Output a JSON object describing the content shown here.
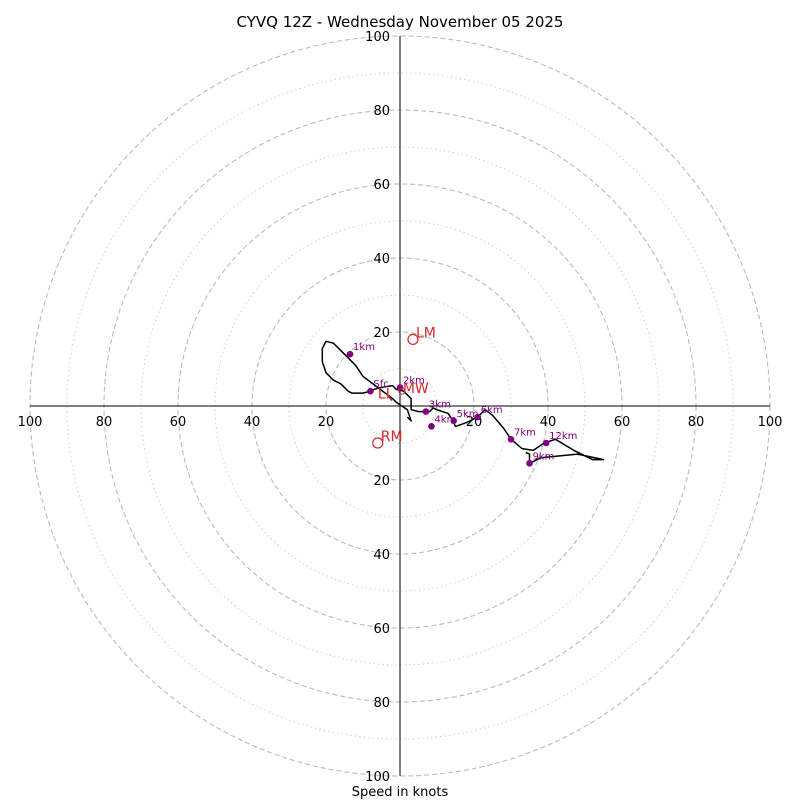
{
  "chart_data": {
    "type": "hodograph",
    "title": "CYVQ 12Z - Wednesday November 05 2025",
    "xlabel": "Speed in knots",
    "range": [
      -100,
      100
    ],
    "ticks": [
      20,
      40,
      60,
      80,
      100
    ],
    "tick_labels": [
      "20",
      "40",
      "60",
      "80",
      "100"
    ],
    "ring_colors": {
      "major": "#bbbbbb",
      "minor": "#cccccc"
    },
    "trace_color": "#000000",
    "point_color": "#800080",
    "marker_color": "#d62728",
    "trace": [
      [
        2,
        -3
      ],
      [
        3,
        -4
      ],
      [
        2,
        -1
      ],
      [
        -1,
        1
      ],
      [
        -2,
        2
      ],
      [
        -6,
        5
      ],
      [
        -10,
        8
      ],
      [
        -12,
        11
      ],
      [
        -15,
        14
      ],
      [
        -18,
        17
      ],
      [
        -20,
        17.5
      ],
      [
        -21,
        15.5
      ],
      [
        -21,
        12
      ],
      [
        -20,
        9
      ],
      [
        -18,
        7
      ],
      [
        -16,
        6
      ],
      [
        -14,
        4
      ],
      [
        -13,
        3.5
      ],
      [
        -10,
        3.5
      ],
      [
        -8,
        4
      ],
      [
        -7,
        4.5
      ],
      [
        -6,
        4.8
      ],
      [
        -4,
        5.2
      ],
      [
        -2,
        5.5
      ],
      [
        -1,
        4.5
      ],
      [
        1,
        4
      ],
      [
        3,
        2
      ],
      [
        3,
        0
      ],
      [
        3,
        -1
      ],
      [
        5,
        -1.5
      ],
      [
        8,
        -1.5
      ],
      [
        9,
        -0.5
      ],
      [
        10,
        -1
      ],
      [
        13,
        -2
      ],
      [
        14,
        -3.5
      ],
      [
        15,
        -5.5
      ],
      [
        18,
        -4.5
      ],
      [
        21,
        -3
      ],
      [
        23,
        -1
      ],
      [
        25,
        -2.5
      ],
      [
        28,
        -6
      ],
      [
        30,
        -9
      ],
      [
        33,
        -11.5
      ],
      [
        36,
        -12
      ],
      [
        39,
        -10
      ],
      [
        42,
        -9
      ],
      [
        47,
        -12
      ],
      [
        52,
        -14.5
      ],
      [
        55,
        -14.5
      ],
      [
        48,
        -13
      ],
      [
        38,
        -14
      ],
      [
        35,
        -15.5
      ],
      [
        35,
        -13
      ],
      [
        34,
        -12.5
      ]
    ],
    "heights": [
      {
        "label": "1km",
        "u": -13.5,
        "v": 14
      },
      {
        "label": "2km",
        "u": 0,
        "v": 5
      },
      {
        "label": "3km",
        "u": 7,
        "v": -1.5
      },
      {
        "label": "4km",
        "u": 8.5,
        "v": -5.5
      },
      {
        "label": "5km",
        "u": 14.5,
        "v": -4
      },
      {
        "label": "6km",
        "u": 21,
        "v": -3
      },
      {
        "label": "7km",
        "u": 30,
        "v": -9
      },
      {
        "label": "9km",
        "u": 35,
        "v": -15.5
      },
      {
        "label": "12km",
        "u": 39.5,
        "v": -10
      },
      {
        "label": "Sfc",
        "u": -8,
        "v": 4
      }
    ],
    "markers": [
      {
        "label": "LM",
        "u": 3.5,
        "v": 18
      },
      {
        "label": "RM",
        "u": -6,
        "v": -10
      },
      {
        "label": "MW",
        "u": 0.5,
        "v": 4
      },
      {
        "label": "LI",
        "u": -3,
        "v": 2
      }
    ]
  }
}
